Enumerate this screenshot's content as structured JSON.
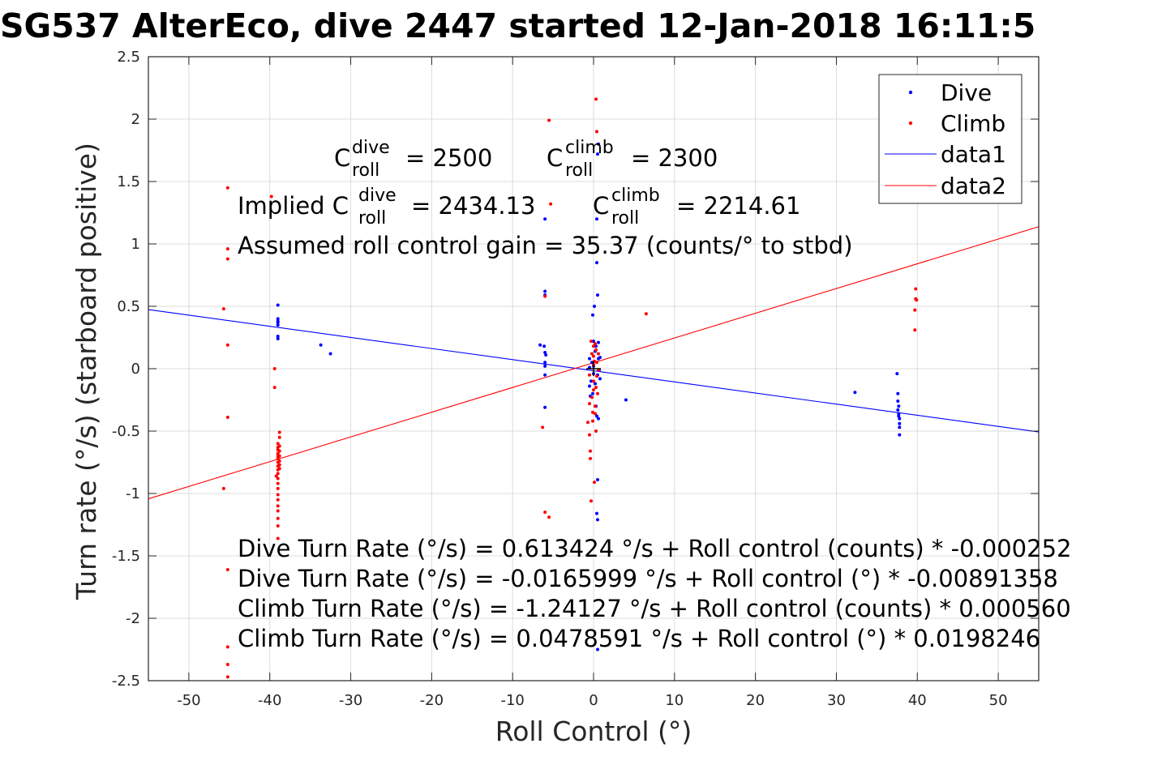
{
  "chart_data": {
    "type": "scatter",
    "title": "SG537 AlterEco, dive 2447 started 12-Jan-2018 16:11:5",
    "xlabel": "Roll Control (°)",
    "ylabel": "Turn rate (°/s) (starboard positive)",
    "xlim": [
      -55,
      55
    ],
    "ylim": [
      -2.5,
      2.5
    ],
    "xticks": [
      -50,
      -40,
      -30,
      -20,
      -10,
      0,
      10,
      20,
      30,
      40,
      50
    ],
    "xtick_labels": [
      "-50",
      "-40",
      "-30",
      "-20",
      "-10",
      "0",
      "10",
      "20",
      "30",
      "40",
      "50"
    ],
    "yticks": [
      -2.5,
      -2,
      -1.5,
      -1,
      -0.5,
      0,
      0.5,
      1,
      1.5,
      2,
      2.5
    ],
    "ytick_labels": [
      "-2.5",
      "-2",
      "-1.5",
      "-1",
      "-0.5",
      "0",
      "0.5",
      "1",
      "1.5",
      "2",
      "2.5"
    ],
    "grid": true,
    "legend_position": "top-right",
    "colors": {
      "dive": "#0000ff",
      "climb": "#ff0000",
      "axis": "#262626",
      "grid": "#dcdcdc"
    },
    "legend": [
      {
        "label": "Dive",
        "kind": "marker",
        "color": "#0000ff"
      },
      {
        "label": "Climb",
        "kind": "marker",
        "color": "#ff0000"
      },
      {
        "label": "data1",
        "kind": "line",
        "color": "#0000ff"
      },
      {
        "label": "data2",
        "kind": "line",
        "color": "#ff0000"
      }
    ],
    "series": [
      {
        "name": "Dive",
        "kind": "points",
        "color": "#0000ff",
        "points": [
          [
            -39,
            0.51
          ],
          [
            -39,
            0.38
          ],
          [
            -39,
            0.35
          ],
          [
            -39,
            0.26
          ],
          [
            -39,
            0.24
          ],
          [
            -39,
            0.4
          ],
          [
            -39,
            0.37
          ],
          [
            -33.7,
            0.19
          ],
          [
            -32.5,
            0.12
          ],
          [
            -6.6,
            0.19
          ],
          [
            -6.1,
            0.18
          ],
          [
            -6,
            0.62
          ],
          [
            -6,
            0.59
          ],
          [
            -6,
            1.2
          ],
          [
            -6,
            0.13
          ],
          [
            -6,
            0.05
          ],
          [
            -6,
            0.02
          ],
          [
            -6,
            -0.05
          ],
          [
            -6,
            -0.31
          ],
          [
            -5.9,
            0.11
          ],
          [
            -0.5,
            0.08
          ],
          [
            -0.5,
            0.01
          ],
          [
            -0.5,
            -0.14
          ],
          [
            -0.4,
            -0.22
          ],
          [
            -0.3,
            -0.1
          ],
          [
            -0.2,
            0.05
          ],
          [
            -0.1,
            0.43
          ],
          [
            -0.1,
            -0.2
          ],
          [
            0,
            0.22
          ],
          [
            0,
            0.02
          ],
          [
            0,
            -0.04
          ],
          [
            0.1,
            0.5
          ],
          [
            0.2,
            -0.12
          ],
          [
            0.2,
            0.14
          ],
          [
            0.3,
            0.18
          ],
          [
            0.3,
            -0.3
          ],
          [
            0.4,
            0.85
          ],
          [
            0.4,
            -0.38
          ],
          [
            0.4,
            1.2
          ],
          [
            0.4,
            -1.16
          ],
          [
            0.5,
            -1.21
          ],
          [
            0.5,
            -0.89
          ],
          [
            0.5,
            0.59
          ],
          [
            0.5,
            -0.05
          ],
          [
            0.6,
            0.08
          ],
          [
            0.6,
            0.21
          ],
          [
            0.6,
            1.8
          ],
          [
            0.5,
            1.72
          ],
          [
            0.5,
            -2.25
          ],
          [
            0.6,
            -0.4
          ],
          [
            0.7,
            -0.01
          ],
          [
            0.8,
            0.09
          ],
          [
            0.8,
            -0.08
          ],
          [
            4,
            -0.25
          ],
          [
            32.3,
            -0.19
          ],
          [
            37.5,
            -0.04
          ],
          [
            37.6,
            -0.2
          ],
          [
            37.6,
            -0.26
          ],
          [
            37.6,
            -0.33
          ],
          [
            37.7,
            -0.36
          ],
          [
            37.7,
            -0.38
          ],
          [
            37.8,
            -0.4
          ],
          [
            37.8,
            -0.44
          ],
          [
            37.8,
            -0.47
          ],
          [
            37.8,
            -0.53
          ],
          [
            37.7,
            -0.3
          ]
        ]
      },
      {
        "name": "Climb",
        "kind": "points",
        "color": "#ff0000",
        "points": [
          [
            -45.7,
            0.48
          ],
          [
            -45.2,
            1.45
          ],
          [
            -45.2,
            0.96
          ],
          [
            -45.2,
            0.88
          ],
          [
            -45.2,
            0.19
          ],
          [
            -45.2,
            -0.39
          ],
          [
            -45.7,
            -0.96
          ],
          [
            -45.2,
            -1.61
          ],
          [
            -45.2,
            -2.23
          ],
          [
            -45.2,
            -2.37
          ],
          [
            -45.2,
            -2.47
          ],
          [
            -39.8,
            1.38
          ],
          [
            -39.4,
            0
          ],
          [
            -39.4,
            -0.15
          ],
          [
            -39.2,
            -0.86
          ],
          [
            -39,
            -0.6
          ],
          [
            -39,
            -0.63
          ],
          [
            -39,
            -0.65
          ],
          [
            -39,
            -0.68
          ],
          [
            -39,
            -0.7
          ],
          [
            -39,
            -0.72
          ],
          [
            -39,
            -0.75
          ],
          [
            -39,
            -0.78
          ],
          [
            -39,
            -0.81
          ],
          [
            -39,
            -0.84
          ],
          [
            -39,
            -0.88
          ],
          [
            -39,
            -0.92
          ],
          [
            -39,
            -0.96
          ],
          [
            -39,
            -1.01
          ],
          [
            -39,
            -1.05
          ],
          [
            -39,
            -1.1
          ],
          [
            -39,
            -1.14
          ],
          [
            -39,
            -1.2
          ],
          [
            -39,
            -1.26
          ],
          [
            -39,
            -1.36
          ],
          [
            -38.8,
            -0.51
          ],
          [
            -38.8,
            -0.55
          ],
          [
            -38.8,
            -0.62
          ],
          [
            -38.8,
            -0.66
          ],
          [
            -38.8,
            -0.7
          ],
          [
            -38.8,
            -0.74
          ],
          [
            -38.8,
            -0.77
          ],
          [
            -38.8,
            -0.8
          ],
          [
            -6.3,
            -0.47
          ],
          [
            -6,
            0.58
          ],
          [
            -6,
            -1.15
          ],
          [
            -5.5,
            1.99
          ],
          [
            -5.5,
            -1.19
          ],
          [
            -5.3,
            1.32
          ],
          [
            -0.7,
            -0.43
          ],
          [
            -0.5,
            -0.05
          ],
          [
            -0.5,
            -0.28
          ],
          [
            -0.5,
            -0.53
          ],
          [
            -0.4,
            -0.66
          ],
          [
            -0.4,
            -0.72
          ],
          [
            -0.3,
            -1.06
          ],
          [
            -0.3,
            0.22
          ],
          [
            -0.2,
            0.12
          ],
          [
            -0.2,
            -0.23
          ],
          [
            -0.1,
            -0.35
          ],
          [
            -0.1,
            -0.42
          ],
          [
            0,
            0.18
          ],
          [
            0,
            0.1
          ],
          [
            0,
            0.03
          ],
          [
            0,
            -0.1
          ],
          [
            0,
            -0.17
          ],
          [
            0.1,
            -0.91
          ],
          [
            0.1,
            0.06
          ],
          [
            0.2,
            -0.3
          ],
          [
            0.2,
            0.2
          ],
          [
            0.3,
            0.15
          ],
          [
            0.3,
            -0.15
          ],
          [
            0.3,
            2.16
          ],
          [
            0.4,
            1.9
          ],
          [
            0.4,
            0.05
          ],
          [
            0.4,
            -0.06
          ],
          [
            0.5,
            -0.2
          ],
          [
            0.6,
            -0.01
          ],
          [
            0.6,
            0.12
          ],
          [
            0.2,
            -0.36
          ],
          [
            0.3,
            -0.5
          ],
          [
            6.5,
            0.44
          ],
          [
            39.8,
            0.64
          ],
          [
            39.8,
            0.56
          ],
          [
            39.9,
            0.55
          ],
          [
            39.7,
            0.47
          ],
          [
            39.7,
            0.31
          ]
        ]
      },
      {
        "name": "data1",
        "kind": "line",
        "color": "#0000ff",
        "x": [
          -55,
          55
        ],
        "y": [
          0.4737,
          -0.5069
        ]
      },
      {
        "name": "data2",
        "kind": "line",
        "color": "#ff0000",
        "x": [
          -55,
          55
        ],
        "y": [
          -1.0425,
          1.1382
        ]
      }
    ],
    "center_markers": [
      {
        "x": 0,
        "y": 0,
        "color": "#000000",
        "shape": "plus"
      }
    ],
    "annotations": {
      "c_dive_prefix": "C",
      "c_dive_sup": "dive",
      "c_dive_sub": "roll",
      "c_dive_value": "= 2500",
      "c_climb_prefix": "C",
      "c_climb_sup": "climb",
      "c_climb_sub": "roll",
      "c_climb_value": "= 2300",
      "implied_prefix": "Implied C",
      "implied_dive_sup": "dive",
      "implied_dive_sub": "roll",
      "implied_dive_value": "= 2434.13",
      "implied_climb_prefix": "C",
      "implied_climb_sup": "climb",
      "implied_climb_sub": "roll",
      "implied_climb_value": "= 2214.61",
      "gain": "Assumed roll control gain = 35.37 (counts/° to stbd)",
      "fits": [
        "Dive Turn Rate (°/s) = 0.613424 °/s + Roll control (counts) * -0.000252",
        "Dive Turn Rate (°/s) = -0.0165999 °/s + Roll control (°) * -0.00891358",
        "Climb Turn Rate (°/s) = -1.24127 °/s + Roll control (counts) * 0.000560",
        "Climb Turn Rate (°/s) = 0.0478591 °/s + Roll control (°) * 0.0198246"
      ]
    }
  }
}
